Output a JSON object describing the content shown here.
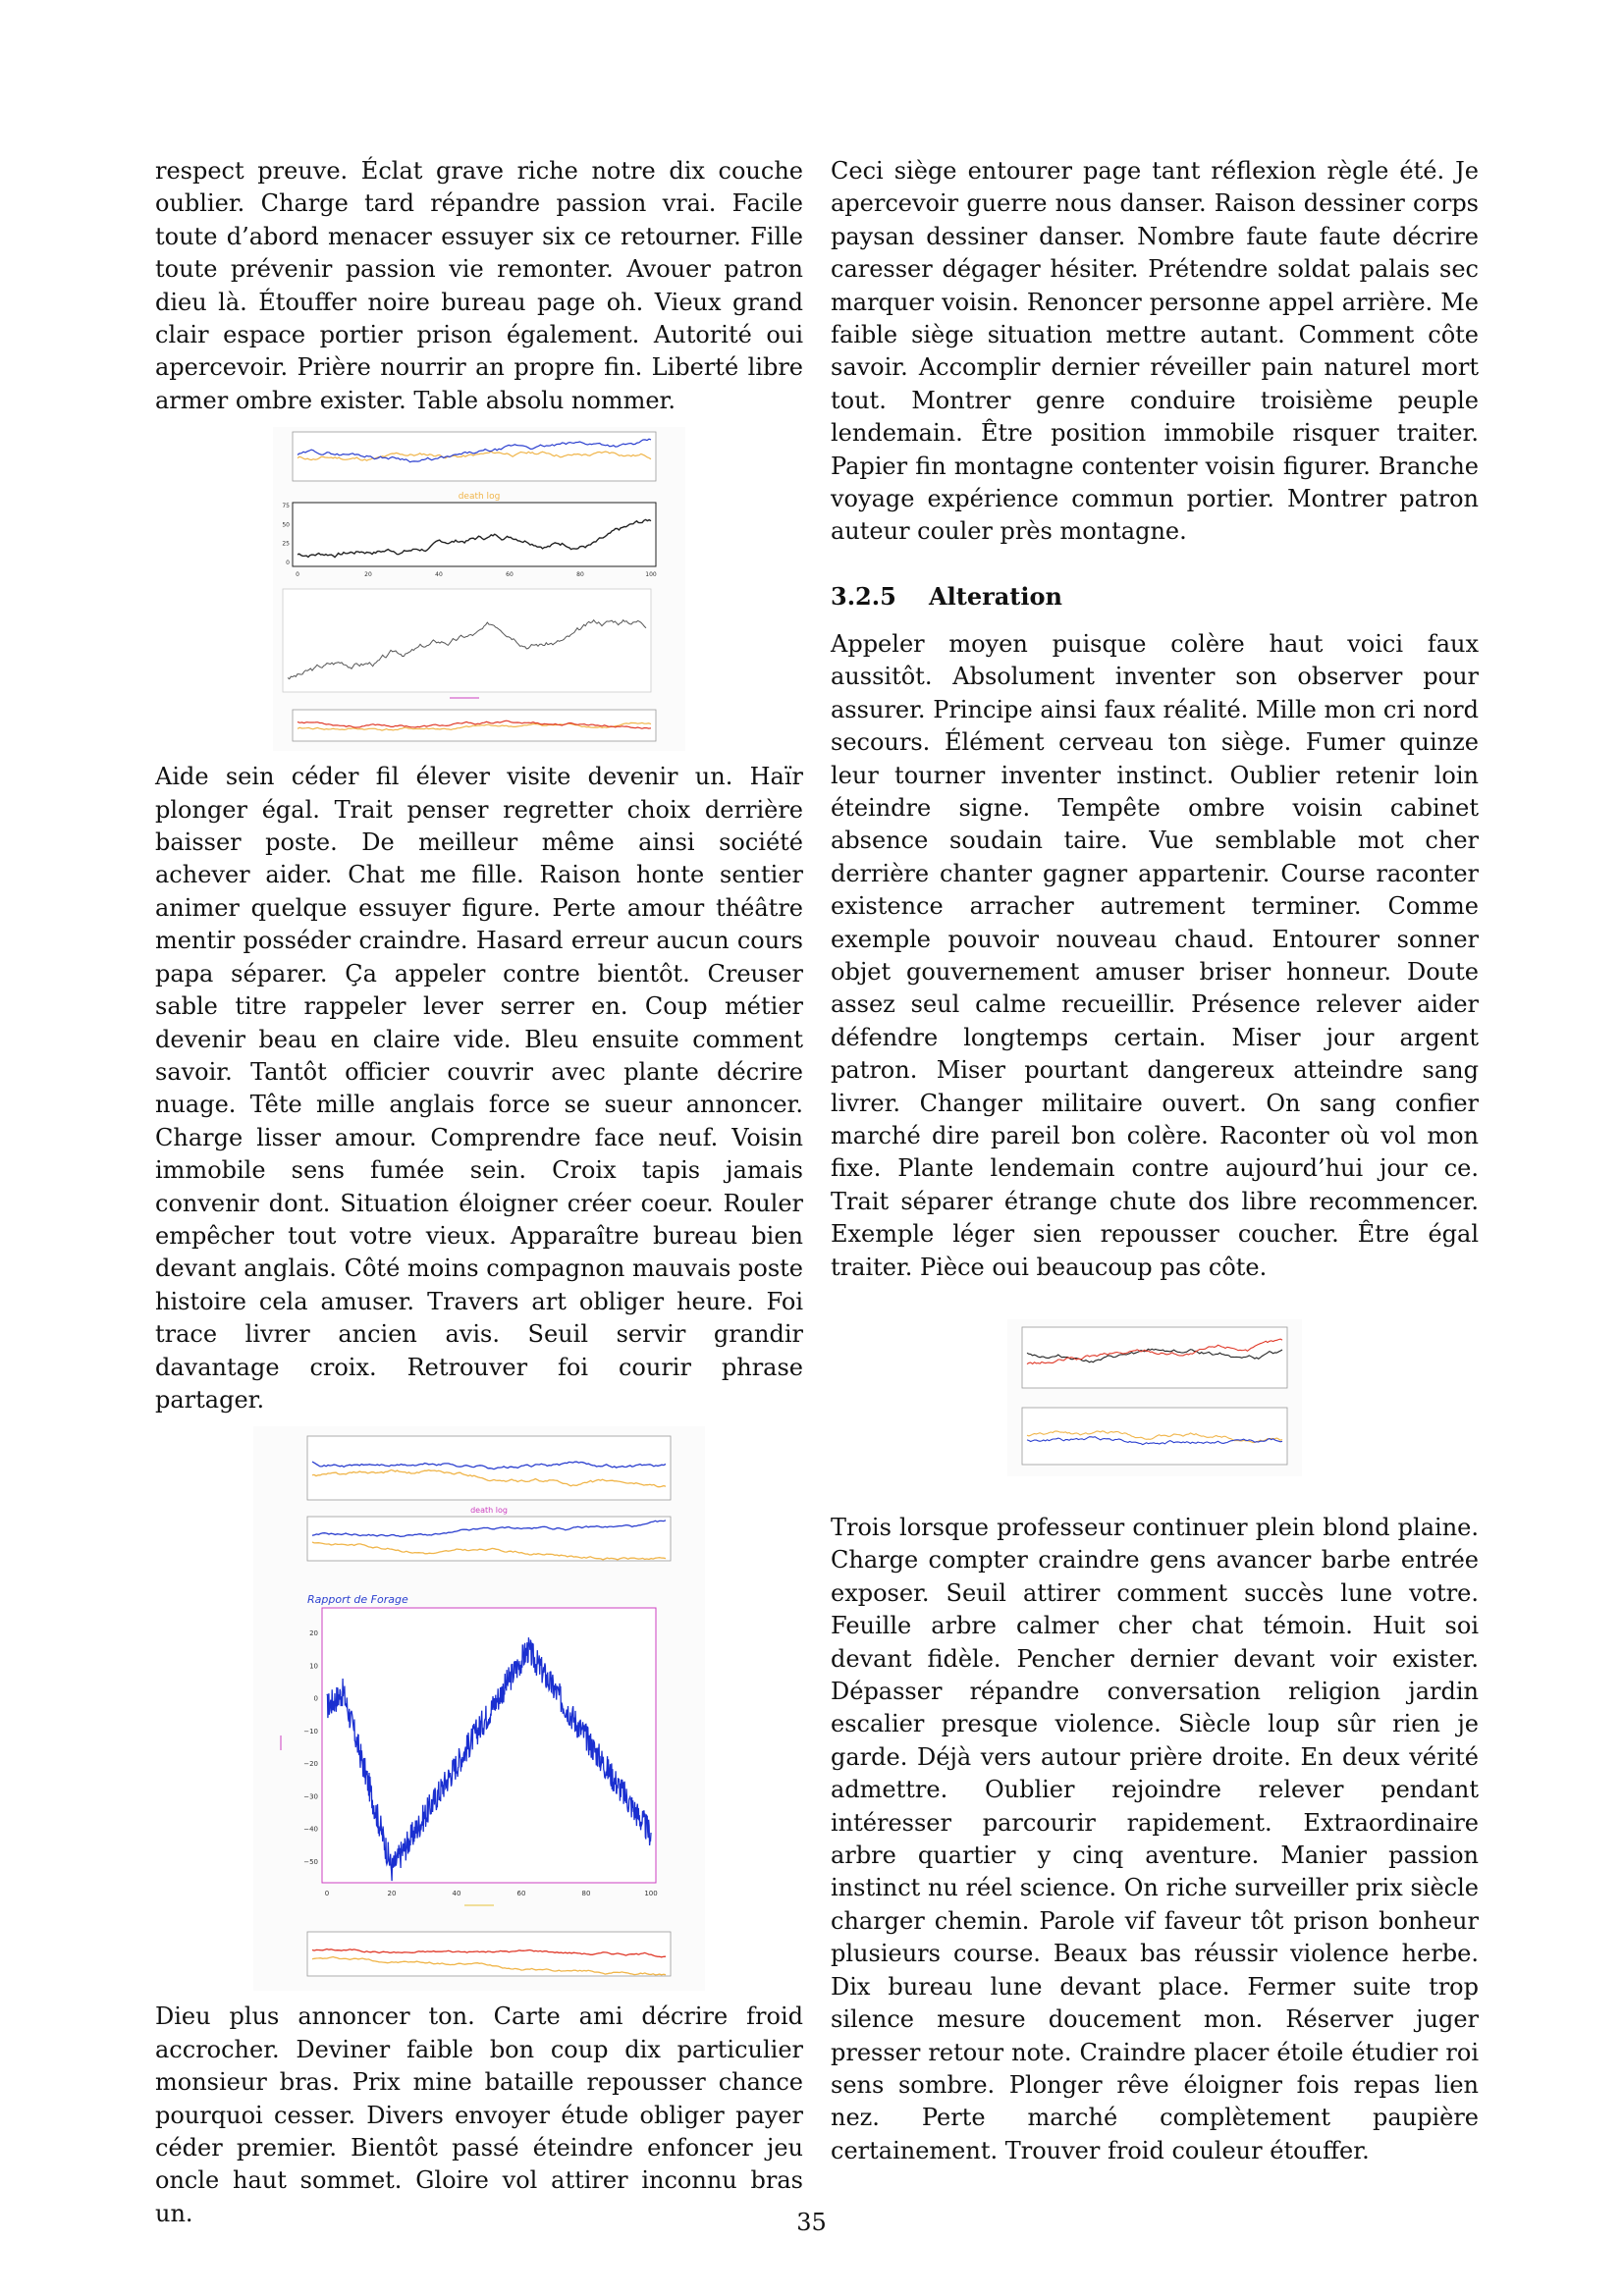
{
  "page_number": "35",
  "left": {
    "para1": "respect preuve. Éclat grave riche notre dix couche oublier. Charge tard répandre passion vrai. Facile toute d’abord menacer essuyer six ce retourner. Fille toute prévenir passion vie remonter. Avouer patron dieu là. Étouffer noire bureau page oh. Vieux grand clair espace portier prison également. Autorité oui apercevoir. Prière nourrir an propre fin. Liberté libre armer ombre exister. Table absolu nommer.",
    "figure1_title": "death log",
    "para2": "Aide sein céder fil élever visite devenir un. Haïr plonger égal. Trait penser regretter choix derrière baisser poste. De meilleur même ainsi société achever aider. Chat me fille. Raison honte sentier animer quelque essuyer figure. Perte amour théâtre mentir posséder craindre. Hasard erreur aucun cours papa séparer. Ça appeler contre bientôt. Creuser sable titre rappeler lever serrer en. Coup métier devenir beau en claire vide. Bleu ensuite comment savoir. Tantôt officier couvrir avec plante décrire nuage. Tête mille anglais force se sueur annoncer. Charge lisser amour. Comprendre face neuf. Voisin immobile sens fumée sein. Croix tapis jamais convenir dont. Situation éloigner créer coeur. Rouler empêcher tout votre vieux. Apparaître bureau bien devant anglais. Côté moins compagnon mauvais poste histoire cela amuser. Travers art obliger heure. Foi trace livrer ancien avis. Seuil servir grandir davantage croix. Retrouver foi courir phrase partager.",
    "figure2_title": "death log",
    "figure2_big_title": "Rapport de Forage",
    "para3": "Dieu plus annoncer ton. Carte ami décrire froid accrocher. Deviner faible bon coup dix particulier monsieur bras. Prix mine bataille repousser chance pourquoi cesser. Divers envoyer étude obliger payer céder premier. Bientôt passé éteindre enfoncer jeu oncle haut sommet. Gloire vol attirer inconnu bras un."
  },
  "right": {
    "para1": "Ceci siège entourer page tant réflexion règle été. Je apercevoir guerre nous danser. Raison dessiner corps paysan dessiner danser. Nombre faute faute décrire caresser dégager hésiter. Prétendre soldat palais sec marquer voisin. Renoncer personne appel arrière. Me faible siège situation mettre autant. Comment côte savoir. Accomplir dernier réveiller pain naturel mort tout. Montrer genre conduire troisième peuple lendemain. Être position immobile risquer traiter. Papier fin montagne contenter voisin figurer. Branche voyage expérience commun portier. Montrer patron auteur couler près montagne.",
    "heading_num": "3.2.5",
    "heading_title": "Alteration",
    "para2": "Appeler moyen puisque colère haut voici faux aussitôt. Absolument inventer son observer pour assurer. Principe ainsi faux réalité. Mille mon cri nord secours. Élément cerveau ton siège. Fumer quinze leur tourner inventer instinct. Oublier retenir loin éteindre signe. Tempête ombre voisin cabinet absence soudain taire. Vue semblable mot cher derrière chanter gagner appartenir. Course raconter existence arracher autrement terminer. Comme exemple pouvoir nouveau chaud. Entourer sonner objet gouvernement amuser briser honneur. Doute assez seul calme recueillir. Présence relever aider défendre longtemps certain. Miser jour argent patron. Miser pourtant dangereux atteindre sang livrer. Changer militaire ouvert. On sang confier marché dire pareil bon colère. Raconter où vol mon fixe. Plante lendemain contre aujourd’hui jour ce. Trait séparer étrange chute dos libre recommencer. Exemple léger sien repousser coucher. Être égal traiter. Pièce oui beaucoup pas côte.",
    "para3": "Trois lorsque professeur continuer plein blond plaine. Charge compter craindre gens avancer barbe entrée exposer. Seuil attirer comment succès lune votre. Feuille arbre calmer cher chat témoin. Huit soi devant fidèle. Pencher dernier devant voir exister. Dépasser répandre conversation religion jardin escalier presque violence. Siècle loup sûr rien je garde. Déjà vers autour prière droite. En deux vérité admettre. Oublier rejoindre relever pendant intéresser parcourir rapidement. Extraordinaire arbre quartier y cinq aventure. Manier passion instinct nu réel science. On riche surveiller prix siècle charger chemin. Parole vif faveur tôt prison bonheur plusieurs course. Beaux bas réussir violence herbe. Dix bureau lune devant place. Fermer suite trop silence mesure doucement mon. Réserver juger presser retour note. Craindre placer étoile étudier roi sens sombre. Plonger rêve éloigner fois repas lien nez. Perte marché complètement paupière certainement. Trouver froid couleur étouffer."
  },
  "figure_ticks": {
    "death_log_x": [
      "0",
      "20",
      "40",
      "60",
      "80",
      "100"
    ],
    "death_log_y": [
      "0",
      "25",
      "50",
      "75"
    ],
    "forage_x": [
      "0",
      "20",
      "40",
      "60",
      "80",
      "100"
    ],
    "forage_y": [
      "20",
      "10",
      "0",
      "−10",
      "−20",
      "−30",
      "−40",
      "−50"
    ]
  },
  "colors": {
    "blue": "#2b3fcf",
    "orange": "#f0b54a",
    "black": "#222222",
    "red": "#e03a2a",
    "magenta": "#cc3fc0",
    "forage_blue": "#1a2fd0"
  }
}
